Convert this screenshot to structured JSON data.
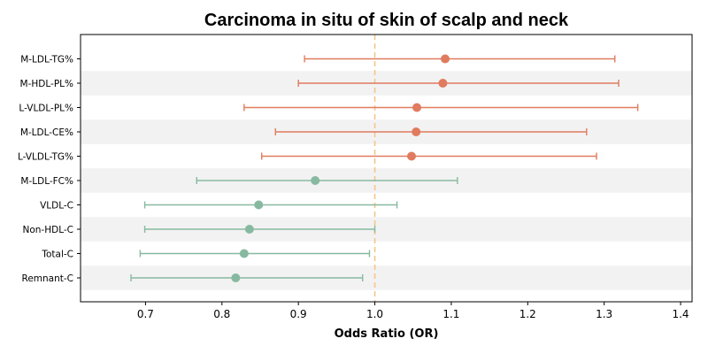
{
  "chart_data": {
    "type": "forest",
    "title": "Carcinoma in situ of skin of scalp and neck",
    "xlabel": "Odds Ratio (OR)",
    "ylabel": "",
    "xlim": [
      0.615,
      1.415
    ],
    "xticks": [
      0.7,
      0.8,
      0.9,
      1.0,
      1.1,
      1.2,
      1.3,
      1.4
    ],
    "xtick_labels": [
      "0.7",
      "0.8",
      "0.9",
      "1.0",
      "1.1",
      "1.2",
      "1.3",
      "1.4"
    ],
    "reference_line": 1.0,
    "grid": false,
    "alternate_row_shading": true,
    "colors": {
      "above_one": "#e07b5f",
      "below_one": "#87b9a0",
      "reference_line": "#f5c58a",
      "row_shade": "#f2f2f2"
    },
    "rows": [
      {
        "label": "M-LDL-TG%",
        "or": 1.092,
        "lower": 0.908,
        "upper": 1.314
      },
      {
        "label": "M-HDL-PL%",
        "or": 1.089,
        "lower": 0.9,
        "upper": 1.319
      },
      {
        "label": "L-VLDL-PL%",
        "or": 1.055,
        "lower": 0.829,
        "upper": 1.344
      },
      {
        "label": "M-LDL-CE%",
        "or": 1.054,
        "lower": 0.87,
        "upper": 1.277
      },
      {
        "label": "L-VLDL-TG%",
        "or": 1.048,
        "lower": 0.852,
        "upper": 1.29
      },
      {
        "label": "M-LDL-FC%",
        "or": 0.922,
        "lower": 0.767,
        "upper": 1.108
      },
      {
        "label": "VLDL-C",
        "or": 0.848,
        "lower": 0.699,
        "upper": 1.029
      },
      {
        "label": "Non-HDL-C",
        "or": 0.836,
        "lower": 0.699,
        "upper": 1.0
      },
      {
        "label": "Total-C",
        "or": 0.829,
        "lower": 0.693,
        "upper": 0.993
      },
      {
        "label": "Remnant-C",
        "or": 0.818,
        "lower": 0.681,
        "upper": 0.984
      }
    ]
  }
}
